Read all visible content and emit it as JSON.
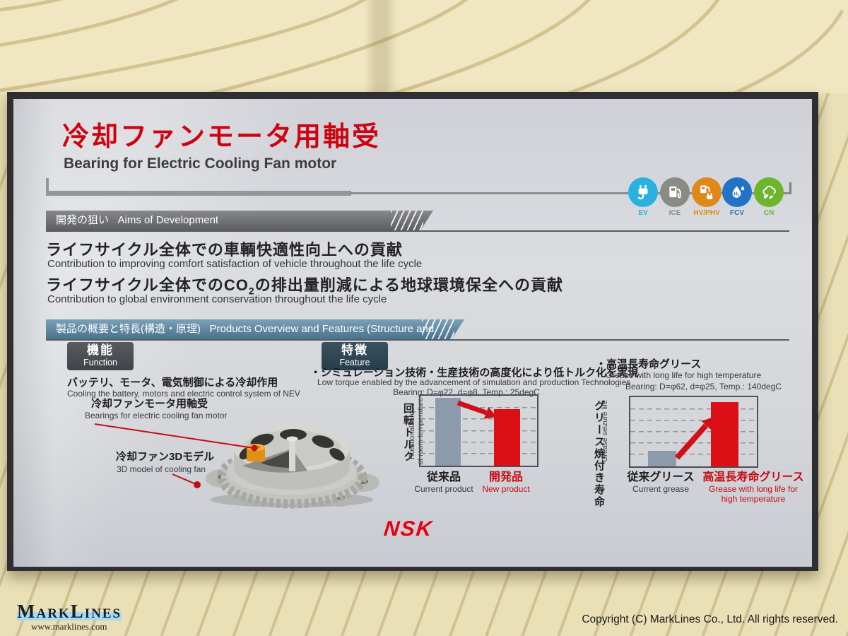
{
  "wall": {
    "marklines_name": "MarkLines",
    "marklines_url": "www.marklines.com",
    "copyright": "Copyright (C) MarkLines Co., Ltd. All rights reserved."
  },
  "panel": {
    "title_jp": "冷却ファンモータ用軸受",
    "title_en": "Bearing for Electric Cooling Fan motor",
    "nsk_logo": "NSK",
    "vehicle_icons": [
      {
        "name": "ev",
        "label": "EV",
        "color": "#29b2e0"
      },
      {
        "name": "ice",
        "label": "ICE",
        "color": "#8b8b85"
      },
      {
        "name": "hv-phv",
        "label": "HV/PHV",
        "color": "#e0891a"
      },
      {
        "name": "fcv",
        "label": "FCV",
        "color": "#2272c8"
      },
      {
        "name": "cn",
        "label": "CN",
        "color": "#6cb52d"
      }
    ],
    "aims": {
      "header_jp": "開発の狙い",
      "header_en": "Aims of Development",
      "item1_jp": "ライフサイクル全体での車輌快適性向上への貢献",
      "item1_en": "Contribution to improving comfort satisfaction of vehicle throughout the life cycle",
      "item2_jp_pre": "ライフサイクル全体でのCO",
      "item2_jp_sub": "2",
      "item2_jp_post": "の排出量削減による地球環境保全への貢献",
      "item2_en": "Contribution to global environment conservation throughout the life cycle"
    },
    "overview": {
      "header_jp": "製品の概要と特長(構造・原理)",
      "header_en": "Products Overview and Features (Structure and Principle)",
      "function_tag_jp": "機能",
      "function_tag_en": "Function",
      "function_desc_jp": "バッテリ、モータ、電気制御による冷却作用",
      "function_desc_en": "Cooling the battery, motors and electric control system of NEV",
      "callout_bearing_jp": "冷却ファンモータ用軸受",
      "callout_bearing_en": "Bearings for electric cooling fan motor",
      "callout_model_jp": "冷却ファン3Dモデル",
      "callout_model_en": "3D model of cooling fan",
      "feature_tag_jp": "特徴",
      "feature_tag_en": "Feature",
      "feature_desc_jp": "・シミュレーション技術・生産技術の高度化により低トルク化を実現",
      "feature_desc_en": "Low torque enabled by the advancement of simulation and production Technologies",
      "feature_spec": "Bearing: D=φ22, d=φ8, Temp.: 25degC",
      "grease_desc_jp": "・高温長寿命グリース",
      "grease_desc_en": "Grease with long life for high temperature",
      "grease_spec": "Bearing: D=φ62, d=φ25, Temp.: 140degC"
    }
  },
  "chart_data": [
    {
      "type": "bar",
      "title": "Rotational torque at room temperature",
      "ylabel_jp": "回転トルク",
      "ylabel_en_lines": [
        "Rotational torque",
        "at room temperature"
      ],
      "categories_jp": [
        "従来品",
        "開発品"
      ],
      "categories_en": [
        "Current product",
        "New product"
      ],
      "values": [
        97,
        81
      ],
      "ylim": [
        0,
        100
      ],
      "bar_colors": [
        "#8c9aab",
        "#dd0f16"
      ],
      "grid": "dashed-horizontal-5-lines",
      "annotation": "red arrow pointing down from current product to new product (torque reduced)"
    },
    {
      "type": "bar",
      "title": "Grease seizure life",
      "ylabel_jp": "グリース焼付き寿命",
      "ylabel_en_lines": [
        "Grease seizure life"
      ],
      "categories_jp": [
        "従来グリース",
        "高温長寿命グリース"
      ],
      "categories_en": [
        "Current grease",
        "Grease with long life for high temperature"
      ],
      "categories_en_lines": [
        [
          "Current grease"
        ],
        [
          "Grease with long life for",
          "high temperature"
        ]
      ],
      "values": [
        22,
        93
      ],
      "ylim": [
        0,
        100
      ],
      "bar_colors": [
        "#8c9aab",
        "#dd0f16"
      ],
      "grid": "dashed-horizontal-5-lines",
      "annotation": "red arrow pointing up from current grease to long-life grease (life increased)"
    }
  ]
}
